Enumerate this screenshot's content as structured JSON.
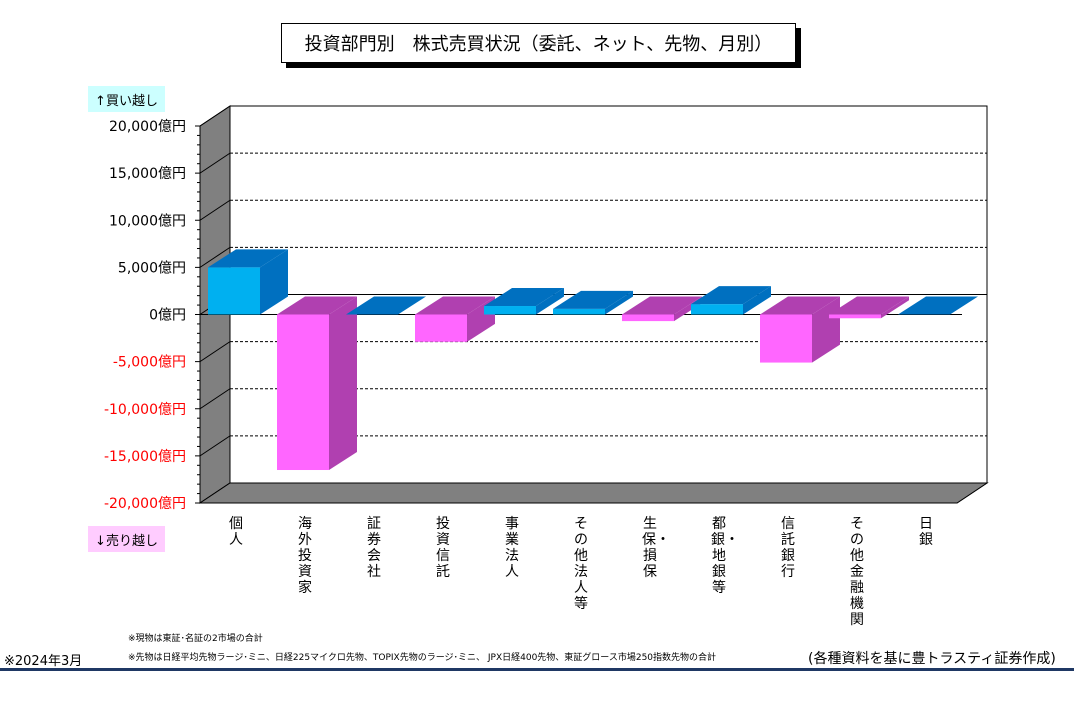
{
  "title": "投資部門別　株式売買状況（委託、ネット、先物、月別）",
  "badge_buy": "↑買い越し",
  "badge_sell": "↓売り越し",
  "note1": "※現物は東証･名証の2市場の合計",
  "note2": "※先物は日経平均先物ラージ･ミニ、日経225マイクロ先物、TOPIX先物のラージ･ミニ、 JPX日経400先物、東証グロース市場250指数先物の合計",
  "date": "※2024年3月",
  "source": "(各種資料を基に豊トラスティ証券作成)",
  "colors": {
    "positive_front": "#00b0f0",
    "positive_top": "#0070c0",
    "negative_front": "#ff66ff",
    "negative_side": "#b040b0",
    "axis_positive_text": "#000000",
    "axis_negative_text": "#ff0000",
    "wall": "#808080"
  },
  "chart_data": {
    "type": "bar",
    "title": "投資部門別　株式売買状況（委託、ネット、先物、月別）",
    "categories": [
      "個人",
      "海外投資家",
      "証券会社",
      "投資信託",
      "事業法人",
      "その他法人等",
      "生保・損保",
      "都銀・地銀等",
      "信託銀行",
      "その他金融機関",
      "日銀"
    ],
    "values": [
      5000,
      -16500,
      0,
      -2900,
      900,
      600,
      -700,
      1100,
      -5100,
      -400,
      0
    ],
    "ylim": [
      -20000,
      20000
    ],
    "yticks": [
      "20,000億円",
      "15,000億円",
      "10,000億円",
      "5,000億円",
      "0億円",
      "-5,000億円",
      "-10,000億円",
      "-15,000億円",
      "-20,000億円"
    ],
    "ytick_values": [
      20000,
      15000,
      10000,
      5000,
      0,
      -5000,
      -10000,
      -15000,
      -20000
    ],
    "grid": true,
    "legend": "none"
  }
}
